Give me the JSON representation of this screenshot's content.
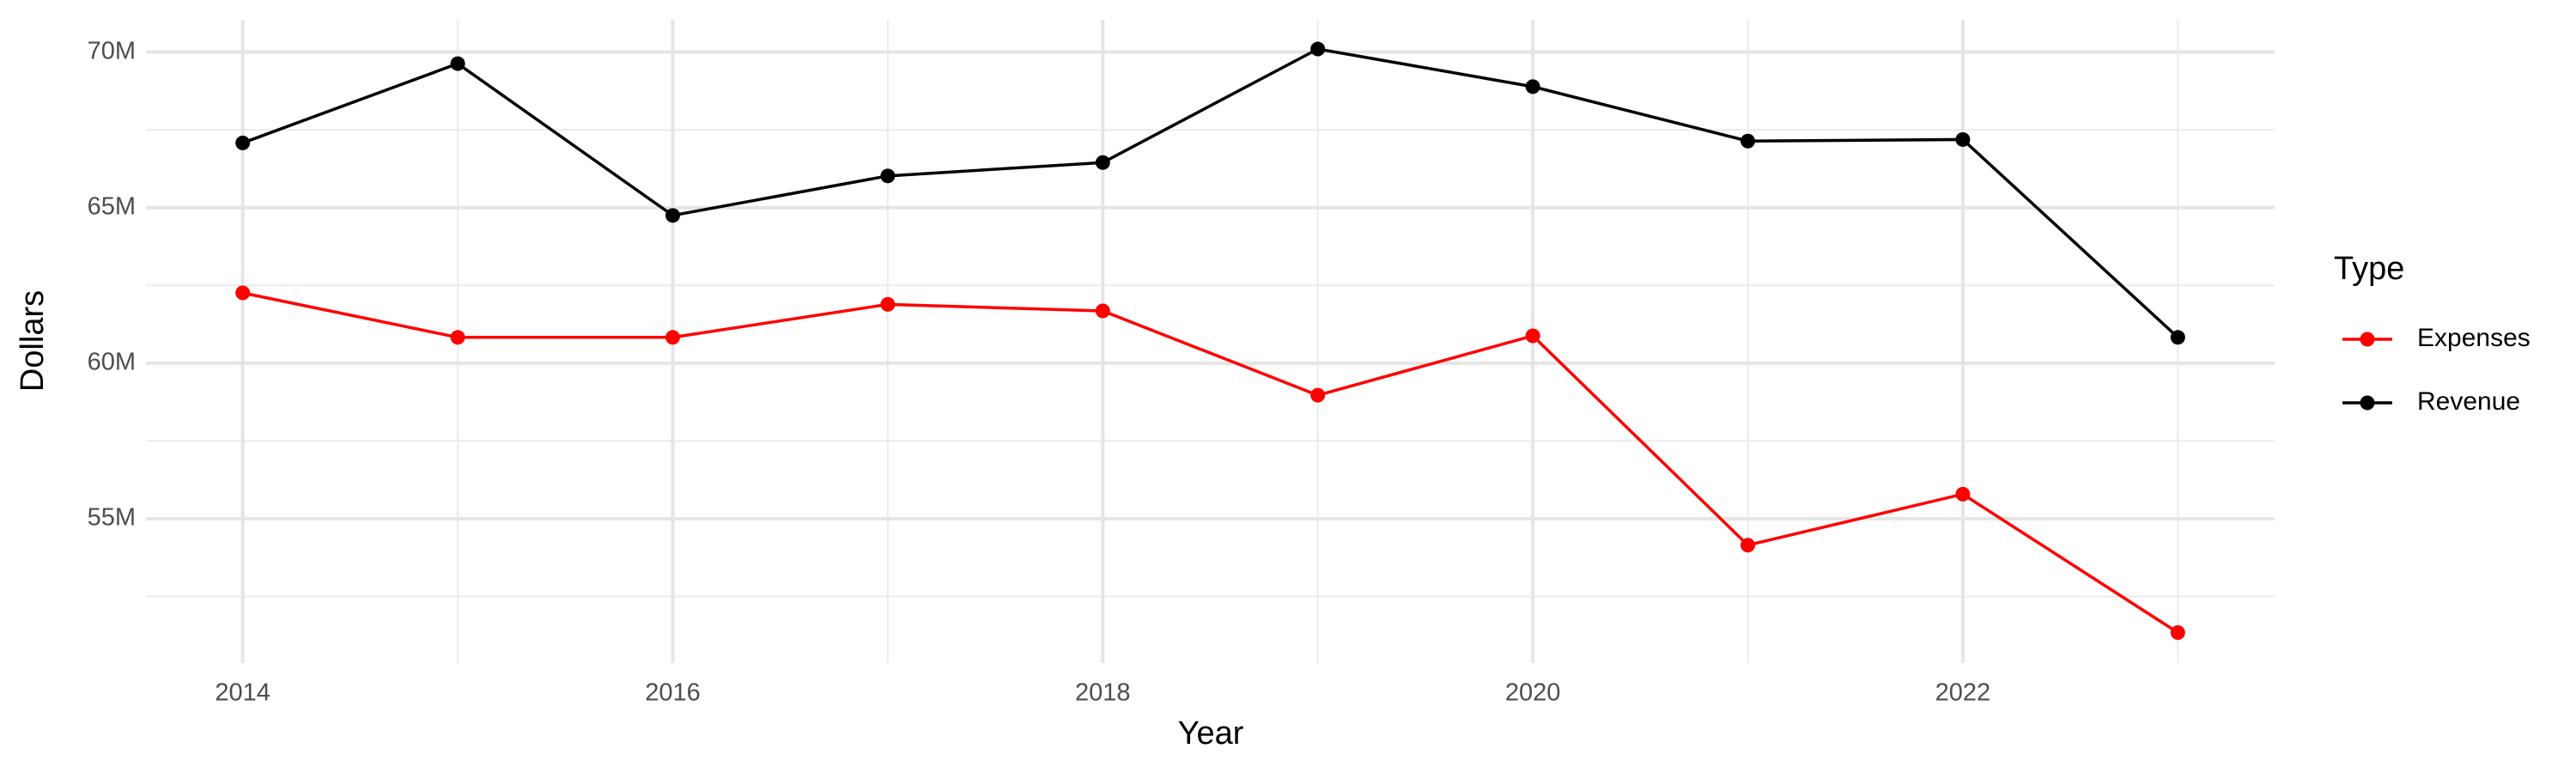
{
  "chart_data": {
    "type": "line",
    "x_label": "Year",
    "y_label": "Dollars",
    "legend_title": "Type",
    "x": [
      2014,
      2015,
      2016,
      2017,
      2018,
      2019,
      2020,
      2021,
      2022,
      2023
    ],
    "series": [
      {
        "name": "Expenses",
        "color": "#ff0000",
        "values": [
          62260000,
          60830000,
          60830000,
          61890000,
          61680000,
          58970000,
          60880000,
          54150000,
          55790000,
          51340000
        ]
      },
      {
        "name": "Revenue",
        "color": "#000000",
        "values": [
          67080000,
          69630000,
          64750000,
          66020000,
          66450000,
          70100000,
          68890000,
          67140000,
          67190000,
          60830000
        ]
      }
    ],
    "xlim": [
      2013.55,
      2023.45
    ],
    "xticks": [
      2014,
      2016,
      2018,
      2020,
      2022
    ],
    "ylim": [
      50360000,
      71040000
    ],
    "yticks": [
      {
        "value": 55000000,
        "label": "55M"
      },
      {
        "value": 60000000,
        "label": "60M"
      },
      {
        "value": 65000000,
        "label": "65M"
      },
      {
        "value": 70000000,
        "label": "70M"
      }
    ],
    "grid": true,
    "minor_grid": true,
    "legend": "right"
  }
}
